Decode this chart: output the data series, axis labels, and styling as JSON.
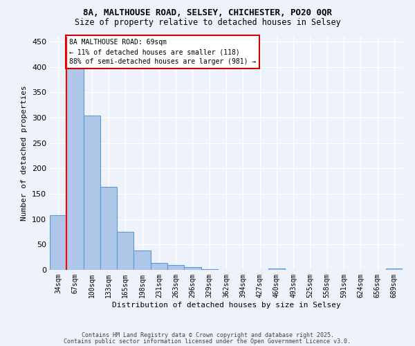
{
  "title1": "8A, MALTHOUSE ROAD, SELSEY, CHICHESTER, PO20 0QR",
  "title2": "Size of property relative to detached houses in Selsey",
  "xlabel": "Distribution of detached houses by size in Selsey",
  "ylabel": "Number of detached properties",
  "categories": [
    "34sqm",
    "67sqm",
    "100sqm",
    "133sqm",
    "165sqm",
    "198sqm",
    "231sqm",
    "263sqm",
    "296sqm",
    "329sqm",
    "362sqm",
    "394sqm",
    "427sqm",
    "460sqm",
    "493sqm",
    "525sqm",
    "558sqm",
    "591sqm",
    "624sqm",
    "656sqm",
    "689sqm"
  ],
  "values": [
    107,
    404,
    304,
    164,
    75,
    38,
    13,
    10,
    5,
    2,
    0,
    0,
    0,
    3,
    0,
    0,
    0,
    0,
    0,
    0,
    3
  ],
  "bar_color": "#aec6e8",
  "bar_edge_color": "#5b9bd5",
  "red_line_index": 1,
  "annotation_text": "8A MALTHOUSE ROAD: 69sqm\n← 11% of detached houses are smaller (118)\n88% of semi-detached houses are larger (981) →",
  "annotation_box_color": "#ffffff",
  "annotation_box_edge": "#cc0000",
  "footer1": "Contains HM Land Registry data © Crown copyright and database right 2025.",
  "footer2": "Contains public sector information licensed under the Open Government Licence v3.0.",
  "background_color": "#eef2fb",
  "grid_color": "#ffffff",
  "ylim": [
    0,
    460
  ],
  "yticks": [
    0,
    50,
    100,
    150,
    200,
    250,
    300,
    350,
    400,
    450
  ],
  "title1_fontsize": 9,
  "title2_fontsize": 8.5,
  "tick_fontsize": 7,
  "label_fontsize": 8,
  "footer_fontsize": 6
}
